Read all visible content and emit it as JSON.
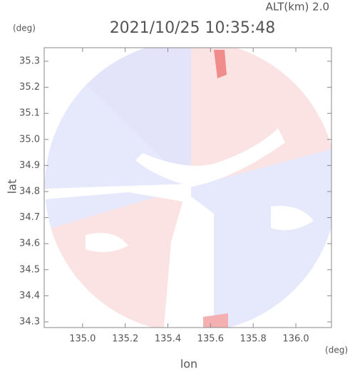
{
  "chart_data": {
    "type": "map",
    "annotation": "ALT(km) 2.0",
    "title": "2021/10/25 10:35:48",
    "x_unit": "(deg)",
    "y_unit": "(deg)",
    "xlabel": "lon",
    "ylabel": "lat",
    "xlim": [
      134.82,
      136.167
    ],
    "ylim": [
      34.278,
      35.352
    ],
    "xticks": [
      {
        "value": 135,
        "label": "135.0"
      },
      135.2,
      135.4,
      135.6,
      135.8,
      {
        "value": 136,
        "label": "136.0"
      }
    ],
    "yticks": [
      34.3,
      34.4,
      34.5,
      34.6,
      34.7,
      34.8,
      34.9,
      {
        "value": 35,
        "label": "35.0"
      },
      35.1,
      35.2,
      35.3
    ]
  }
}
